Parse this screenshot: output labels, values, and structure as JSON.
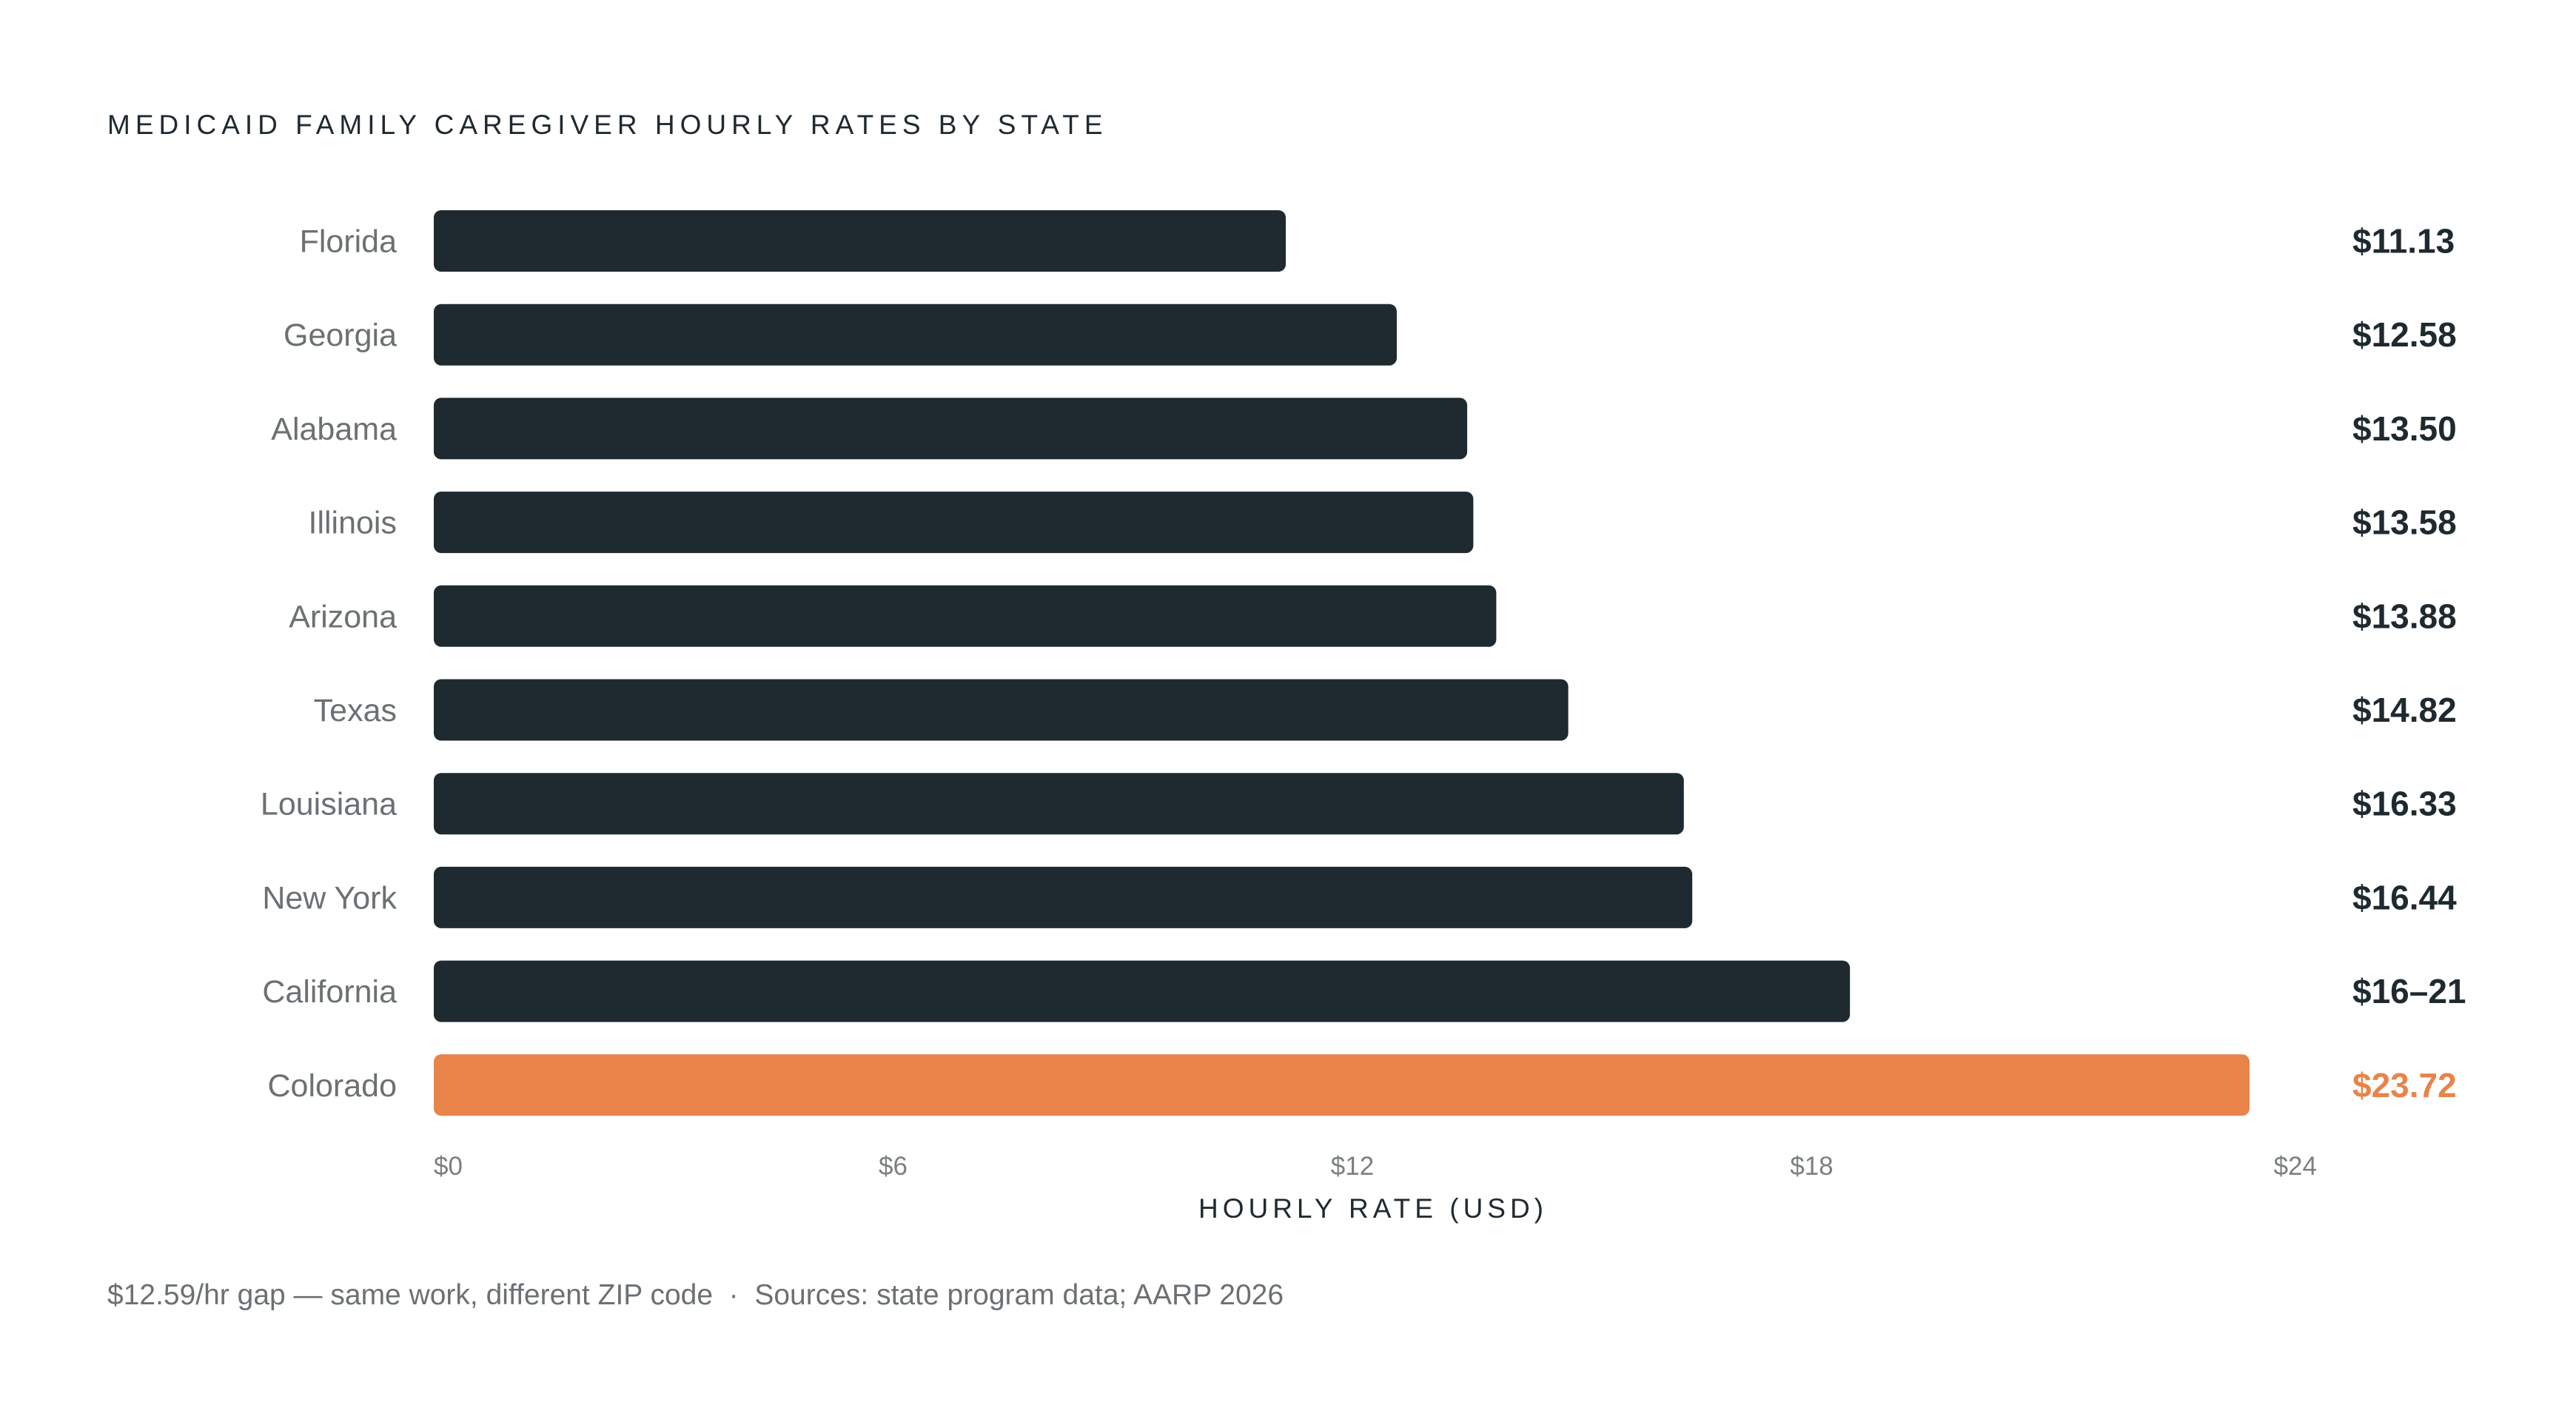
{
  "chart_data": {
    "type": "bar",
    "orientation": "horizontal",
    "title": "MEDICAID FAMILY CAREGIVER HOURLY RATES BY STATE",
    "xlabel": "HOURLY RATE (USD)",
    "ylabel": "",
    "xlim": [
      0,
      24.6
    ],
    "ticks": [
      0,
      6,
      12,
      18,
      24
    ],
    "tick_labels": [
      "$0",
      "$6",
      "$12",
      "$18",
      "$24"
    ],
    "grid": false,
    "legend": "none",
    "categories": [
      "Florida",
      "Georgia",
      "Alabama",
      "Illinois",
      "Arizona",
      "Texas",
      "Louisiana",
      "New York",
      "California",
      "Colorado"
    ],
    "values": [
      11.13,
      12.58,
      13.5,
      13.58,
      13.88,
      14.82,
      16.33,
      16.44,
      18.5,
      23.72
    ],
    "value_labels": [
      "$11.13",
      "$12.58",
      "$13.50",
      "$13.58",
      "$13.88",
      "$14.82",
      "$16.33",
      "$16.44",
      "$16–21",
      "$23.72"
    ],
    "highlight": [
      "Colorado"
    ],
    "colors": {
      "bar": "#1e2a30",
      "highlight": "#e8844a",
      "text": "#1e2a30",
      "muted": "#6b7073"
    },
    "footnote": "$12.59/hr gap — same work, different ZIP code  ·  Sources: state program data; AARP 2026"
  }
}
